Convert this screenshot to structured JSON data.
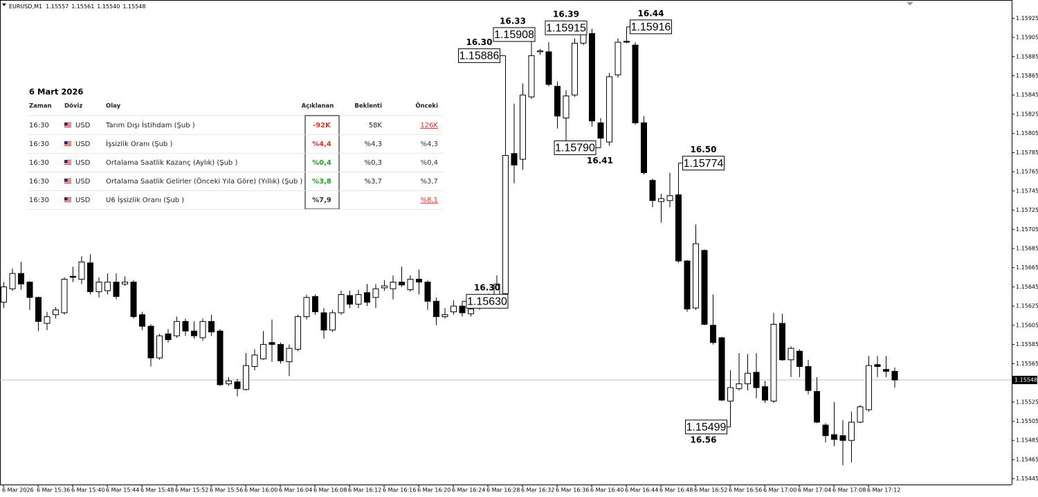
{
  "chart_data": {
    "type": "candlestick",
    "header": {
      "symbol": "EURUSD,M1",
      "values": [
        "1.15557",
        "1.15561",
        "1.15540",
        "1.15548"
      ]
    },
    "categories": [
      "6 Mar 2026",
      null,
      null,
      null,
      "6 Mar 15:36",
      null,
      null,
      null,
      "6 Mar 15:40",
      null,
      null,
      null,
      "6 Mar 15:44",
      null,
      null,
      null,
      "6 Mar 15:48",
      null,
      null,
      null,
      "6 Mar 15:52",
      null,
      null,
      null,
      "6 Mar 15:56",
      null,
      null,
      null,
      "6 Mar 16:00",
      null,
      null,
      null,
      "6 Mar 16:04",
      null,
      null,
      null,
      "6 Mar 16:08",
      null,
      null,
      null,
      "6 Mar 16:12",
      null,
      null,
      null,
      "6 Mar 16:16",
      null,
      null,
      null,
      "6 Mar 16:20",
      null,
      null,
      null,
      "6 Mar 16:24",
      null,
      null,
      null,
      "6 Mar 16:28",
      null,
      null,
      null,
      "6 Mar 16:32",
      null,
      null,
      null,
      "6 Mar 16:36",
      null,
      null,
      null,
      "6 Mar 16:40",
      null,
      null,
      null,
      "6 Mar 16:44",
      null,
      null,
      null,
      "6 Mar 16:48",
      null,
      null,
      null,
      "6 Mar 16:52",
      null,
      null,
      null,
      "6 Mar 16:56",
      null,
      null,
      null,
      "6 Mar 17:00",
      null,
      null,
      null,
      "6 Mar 17:04",
      null,
      null,
      null,
      "6 Mar 17:08",
      null,
      null,
      null,
      "6 Mar 17:12",
      null,
      null,
      null
    ],
    "open": [
      1.15629,
      1.15643,
      1.15659,
      1.1565,
      1.15634,
      1.15607,
      1.15616,
      1.15618,
      1.15656,
      1.15653,
      1.1567,
      1.1564,
      1.15641,
      1.1565,
      1.15648,
      1.1565,
      1.15616,
      1.15604,
      1.15571,
      1.15596,
      1.15594,
      1.15609,
      1.15599,
      1.15592,
      1.15609,
      1.15599,
      1.15544,
      1.15546,
      1.15538,
      1.15562,
      1.1557,
      1.15587,
      1.15585,
      1.15567,
      1.1558,
      1.15614,
      1.15635,
      1.15618,
      1.156,
      1.15618,
      1.15636,
      1.15627,
      1.15639,
      1.15634,
      1.15644,
      1.15643,
      1.1565,
      1.15642,
      1.15653,
      1.1565,
      1.1563,
      1.15614,
      1.15619,
      1.15625,
      1.15617,
      1.15623,
      1.1563,
      1.15635,
      1.15638,
      1.15784,
      1.15778,
      1.15843,
      1.1589,
      1.1589,
      1.15854,
      1.15821,
      1.15845,
      1.15899,
      1.15909,
      1.15816,
      1.15796,
      1.15866,
      1.15901,
      1.15897,
      1.15816,
      1.15756,
      1.15734,
      1.15735,
      1.15741,
      1.15672,
      1.15623,
      1.15683,
      1.15605,
      1.15592,
      1.15526,
      1.15539,
      1.15544,
      1.15556,
      1.15541,
      1.15526,
      1.15607,
      1.15569,
      1.15578,
      1.15562,
      1.15536,
      1.15501,
      1.15491,
      1.1549,
      1.15485,
      1.15504,
      1.15517,
      1.15564,
      1.15559,
      1.15557
    ],
    "high": [
      1.1565,
      1.15664,
      1.15671,
      1.15651,
      1.15635,
      1.15619,
      1.15624,
      1.15655,
      1.15666,
      1.15677,
      1.15679,
      1.15655,
      1.15659,
      1.15659,
      1.15656,
      1.15652,
      1.15619,
      1.15606,
      1.15596,
      1.15601,
      1.15614,
      1.15612,
      1.15609,
      1.15612,
      1.15616,
      1.15601,
      1.15551,
      1.15549,
      1.15576,
      1.1558,
      1.15599,
      1.15611,
      1.15587,
      1.15585,
      1.15616,
      1.15637,
      1.15637,
      1.15623,
      1.15621,
      1.15641,
      1.15641,
      1.15642,
      1.15648,
      1.15648,
      1.15652,
      1.15657,
      1.15666,
      1.15657,
      1.15663,
      1.15652,
      1.15634,
      1.15623,
      1.15631,
      1.1563,
      1.15627,
      1.15632,
      1.15638,
      1.15657,
      1.15886,
      1.15836,
      1.15857,
      1.15908,
      1.15893,
      1.159,
      1.15859,
      1.1585,
      1.15904,
      1.15915,
      1.15914,
      1.15821,
      1.15868,
      1.15904,
      1.15916,
      1.159,
      1.15823,
      1.15758,
      1.15742,
      1.15764,
      1.15774,
      1.15673,
      1.1571,
      1.15684,
      1.15637,
      1.15593,
      1.15558,
      1.15576,
      1.15575,
      1.15576,
      1.15547,
      1.15618,
      1.15617,
      1.15583,
      1.1558,
      1.15569,
      1.15551,
      1.15503,
      1.15525,
      1.15506,
      1.15515,
      1.15522,
      1.15573,
      1.15573,
      1.15573,
      1.15561
    ],
    "low": [
      1.15623,
      1.15641,
      1.15642,
      1.15621,
      1.15599,
      1.156,
      1.15612,
      1.15616,
      1.1565,
      1.15648,
      1.15637,
      1.15634,
      1.15637,
      1.15632,
      1.15646,
      1.15612,
      1.156,
      1.15562,
      1.15569,
      1.15587,
      1.15592,
      1.15594,
      1.15591,
      1.15589,
      1.15594,
      1.15542,
      1.15542,
      1.15531,
      1.15537,
      1.15558,
      1.15569,
      1.15567,
      1.15565,
      1.15552,
      1.15578,
      1.15611,
      1.15616,
      1.15591,
      1.15598,
      1.15616,
      1.15623,
      1.15623,
      1.15625,
      1.15623,
      1.15641,
      1.15632,
      1.15645,
      1.1564,
      1.15637,
      1.15621,
      1.15605,
      1.15612,
      1.15616,
      1.15614,
      1.15614,
      1.15621,
      1.15628,
      1.15632,
      1.1563,
      1.15753,
      1.15767,
      1.15841,
      1.15887,
      1.15854,
      1.1581,
      1.15796,
      1.15843,
      1.15897,
      1.15812,
      1.1579,
      1.15792,
      1.15863,
      1.15899,
      1.15814,
      1.15762,
      1.15728,
      1.15712,
      1.15728,
      1.1567,
      1.15619,
      1.15621,
      1.15605,
      1.15585,
      1.15526,
      1.15499,
      1.15537,
      1.15537,
      1.15529,
      1.15524,
      1.15524,
      1.15568,
      1.15551,
      1.15551,
      1.15533,
      1.15503,
      1.15483,
      1.15479,
      1.15459,
      1.15462,
      1.15503,
      1.15515,
      1.15551,
      1.15551,
      1.1554
    ],
    "close": [
      1.15645,
      1.15659,
      1.15648,
      1.15634,
      1.15609,
      1.15614,
      1.15621,
      1.15653,
      1.15655,
      1.15671,
      1.1564,
      1.1565,
      1.1565,
      1.15635,
      1.1565,
      1.15614,
      1.15604,
      1.15571,
      1.15594,
      1.1559,
      1.15609,
      1.15599,
      1.15594,
      1.15609,
      1.15598,
      1.15543,
      1.15547,
      1.15539,
      1.15563,
      1.15574,
      1.15585,
      1.15585,
      1.15568,
      1.15581,
      1.15614,
      1.15634,
      1.15619,
      1.156,
      1.15618,
      1.15637,
      1.15627,
      1.15637,
      1.15629,
      1.15643,
      1.15646,
      1.1565,
      1.15647,
      1.15653,
      1.1565,
      1.1563,
      1.15614,
      1.15616,
      1.15625,
      1.15618,
      1.15622,
      1.15629,
      1.15634,
      1.15648,
      1.15782,
      1.15772,
      1.15845,
      1.15886,
      1.15891,
      1.15856,
      1.15823,
      1.15844,
      1.15899,
      1.15912,
      1.15818,
      1.158,
      1.15864,
      1.159,
      1.159,
      1.15816,
      1.15764,
      1.15735,
      1.15737,
      1.1574,
      1.15672,
      1.15622,
      1.1569,
      1.15606,
      1.15587,
      1.15527,
      1.1554,
      1.15544,
      1.15555,
      1.1554,
      1.15527,
      1.15606,
      1.15569,
      1.15581,
      1.15562,
      1.15537,
      1.15504,
      1.1549,
      1.15486,
      1.15485,
      1.15504,
      1.1552,
      1.15563,
      1.15562,
      1.15557,
      1.15548
    ],
    "ylim": [
      1.15439,
      1.15944
    ],
    "yticks": [
      1.15925,
      1.15905,
      1.15885,
      1.15865,
      1.15845,
      1.15825,
      1.15805,
      1.15785,
      1.15765,
      1.15745,
      1.15725,
      1.15705,
      1.15685,
      1.15665,
      1.15645,
      1.15625,
      1.15605,
      1.15585,
      1.15565,
      1.15525,
      1.15505,
      1.15485,
      1.15465,
      1.15445
    ],
    "annotations": [
      {
        "time": "16.30",
        "value": 1.15886
      },
      {
        "time": "16.33",
        "value": 1.15908
      },
      {
        "time": "16.39",
        "value": 1.15915
      },
      {
        "time": "16.44",
        "value": 1.15916
      },
      {
        "time": "16.41",
        "value": 1.1579,
        "label": "1.15790"
      },
      {
        "time": "16.50",
        "value": 1.15774
      },
      {
        "time": "16.30",
        "value": 1.1563,
        "label": "1.15630"
      },
      {
        "time": "16.56",
        "value": 1.15499
      }
    ]
  },
  "calendar": {
    "title": "6 Mart 2026",
    "columns": [
      "Zaman",
      "Döviz",
      "Olay",
      "Açıklanan",
      "Beklenti",
      "Önceki"
    ],
    "rows": [
      {
        "time": "16:30",
        "currency": "USD",
        "event": "Tarım Dışı İstihdam (Şub )",
        "actual": "-92K",
        "actual_color": "#e0302b",
        "forecast": "58K",
        "previous": "126K",
        "previous_color": "#e0302b"
      },
      {
        "time": "16:30",
        "currency": "USD",
        "event": "İşsizlik Oranı (Şub )",
        "actual": "%4,4",
        "actual_color": "#e0302b",
        "forecast": "%4,3",
        "previous": "%4,3",
        "previous_color": "#333333"
      },
      {
        "time": "16:30",
        "currency": "USD",
        "event": "Ortalama Saatlik Kazanç (Aylık) (Şub )",
        "actual": "%0,4",
        "actual_color": "#1f9e1f",
        "forecast": "%0,3",
        "previous": "%0,4",
        "previous_color": "#333333"
      },
      {
        "time": "16:30",
        "currency": "USD",
        "event": "Ortalama Saatlik Gelirler (Önceki Yıla Göre) (Yıllık) (Şub )",
        "actual": "%3,8",
        "actual_color": "#1f9e1f",
        "forecast": "%3,7",
        "previous": "%3,7",
        "previous_color": "#333333"
      },
      {
        "time": "16:30",
        "currency": "USD",
        "event": "U6 İşsizlik Oranı (Şub )",
        "actual": "%7,9",
        "actual_color": "#333333",
        "forecast": null,
        "previous": "%8,1",
        "previous_color": "#e0302b"
      }
    ]
  }
}
